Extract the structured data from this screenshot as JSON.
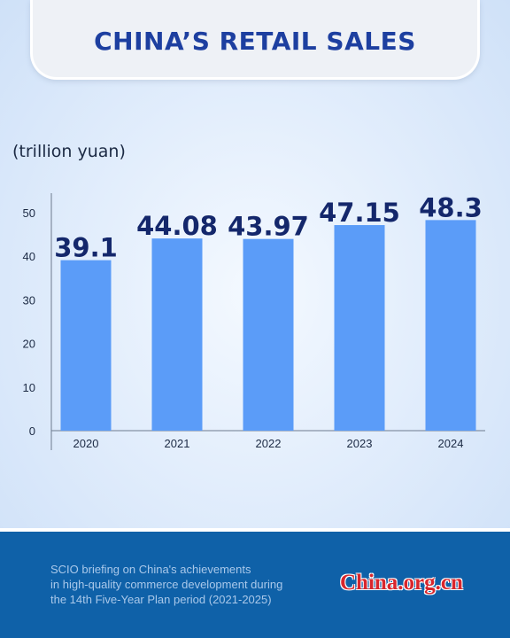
{
  "title": "CHINA’S RETAIL SALES",
  "unit_label": "(trillion yuan)",
  "chart_data": {
    "type": "bar",
    "categories": [
      "2020",
      "2021",
      "2022",
      "2023",
      "2024"
    ],
    "values": [
      39.1,
      44.08,
      43.97,
      47.15,
      48.3
    ],
    "value_labels": [
      "39.1",
      "44.08",
      "43.97",
      "47.15",
      "48.3"
    ],
    "ylim": [
      0,
      50
    ],
    "yticks": [
      0,
      10,
      20,
      30,
      40,
      50
    ],
    "ylabel": "(trillion yuan)",
    "xlabel": "",
    "grid": false,
    "legend": "none",
    "bar_color": "#5b9cf8",
    "label_color": "#14276b"
  },
  "footer": {
    "lines": [
      "SCIO briefing on China's achievements",
      "in high-quality commerce development during",
      "the 14th Five-Year Plan period (2021-2025)"
    ],
    "logo_text": "China.org.cn"
  },
  "colors": {
    "title": "#1d3fa0",
    "footer_bg": "#0f61a8",
    "logo": "#d8262c"
  }
}
